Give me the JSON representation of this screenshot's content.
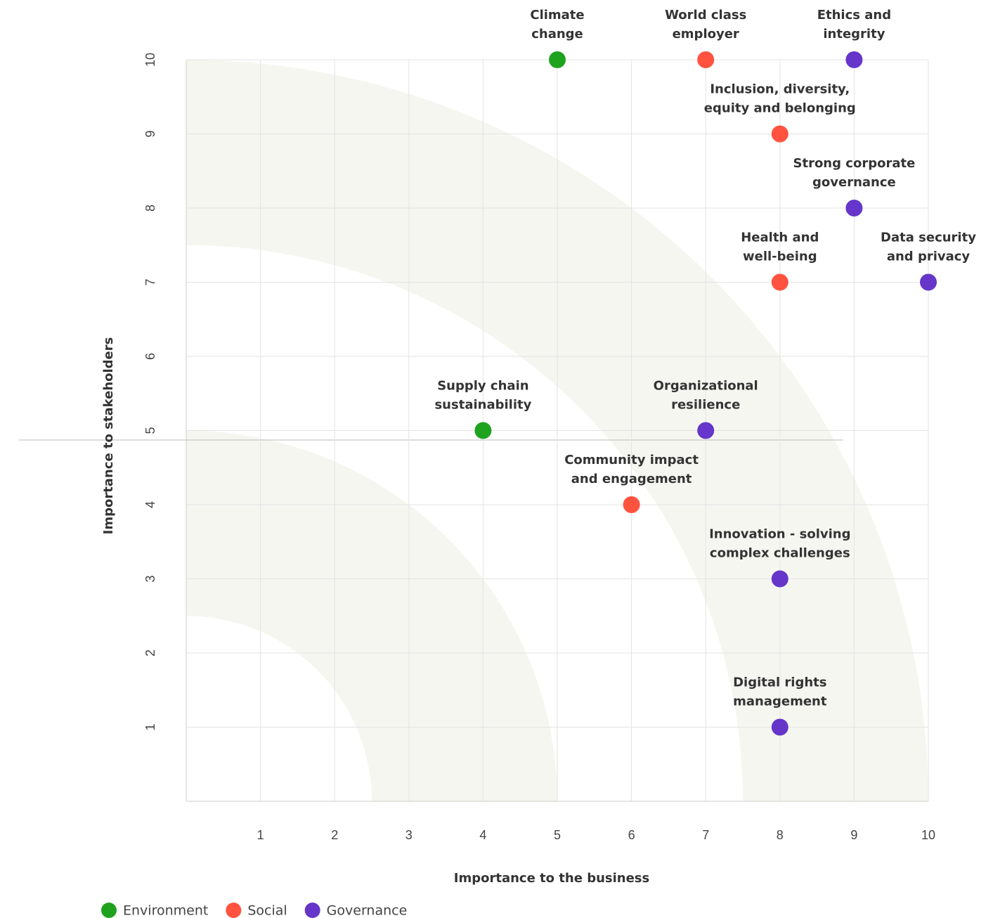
{
  "chart_data": {
    "type": "scatter",
    "x_label": "Importance to the business",
    "y_label": "Importance to stakeholders",
    "xlim": [
      0,
      10
    ],
    "ylim": [
      0,
      10
    ],
    "xticks": [
      1,
      2,
      3,
      4,
      5,
      6,
      7,
      8,
      9,
      10
    ],
    "yticks": [
      1,
      2,
      3,
      4,
      5,
      6,
      7,
      8,
      9,
      10
    ],
    "grid": true,
    "legend": "bottom-left",
    "series": [
      {
        "name": "Environment",
        "color": "#1fa31f",
        "x": [
          5,
          4
        ],
        "values": [
          10,
          5
        ],
        "labels": [
          [
            "Climate",
            "change"
          ],
          [
            "Supply chain",
            "sustainability"
          ]
        ]
      },
      {
        "name": "Social",
        "color": "#ff5340",
        "x": [
          7,
          8,
          8,
          6
        ],
        "values": [
          10,
          9,
          7,
          4
        ],
        "labels": [
          [
            "World class",
            "employer"
          ],
          [
            "Inclusion, diversity,",
            "equity and belonging"
          ],
          [
            "Health and",
            "well-being"
          ],
          [
            "Community impact",
            "and engagement"
          ]
        ]
      },
      {
        "name": "Governance",
        "color": "#6536c9",
        "x": [
          9,
          9,
          10,
          7,
          8,
          8
        ],
        "values": [
          10,
          8,
          7,
          5,
          3,
          1
        ],
        "labels": [
          [
            "Ethics and",
            "integrity"
          ],
          [
            "Strong corporate",
            "governance"
          ],
          [
            "Data security",
            "and privacy"
          ],
          [
            "Organizational",
            "resilience"
          ],
          [
            "Innovation - solving",
            "complex challenges"
          ],
          [
            "Digital rights",
            "management"
          ]
        ]
      }
    ]
  }
}
